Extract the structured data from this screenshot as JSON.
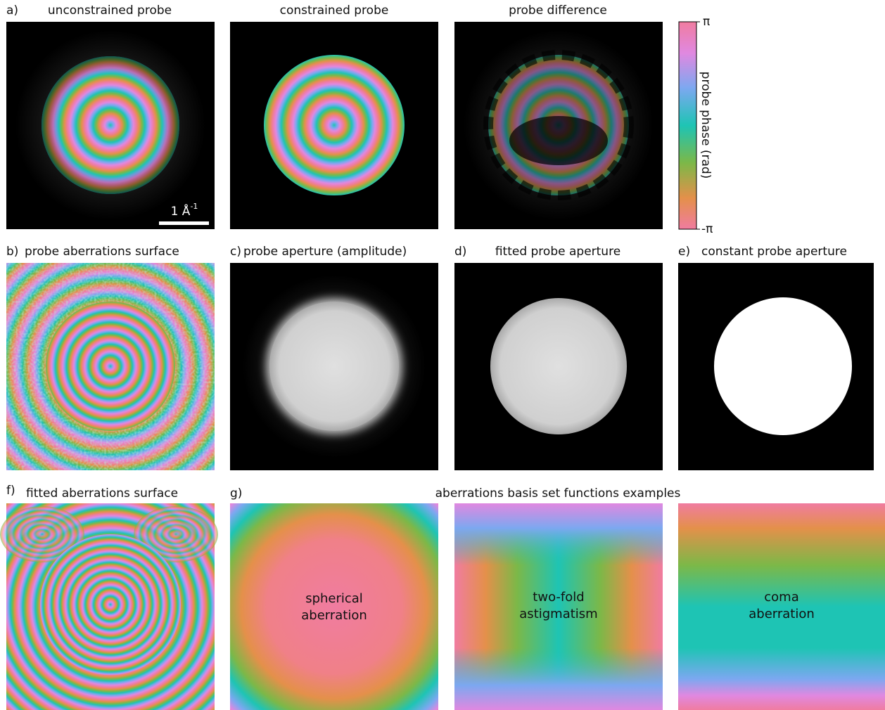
{
  "panels": [
    {
      "letter": "a)",
      "title": "unconstrained probe"
    },
    {
      "title": "constrained probe"
    },
    {
      "title": "probe difference"
    },
    {
      "letter": "b)",
      "title": "probe aberrations surface"
    },
    {
      "letter": "c)",
      "title": "probe aperture (amplitude)"
    },
    {
      "letter": "d)",
      "title": "fitted probe aperture"
    },
    {
      "letter": "e)",
      "title": "constant probe aperture"
    },
    {
      "letter": "f)",
      "title": "fitted aberrations surface"
    }
  ],
  "scale_bar": {
    "text": "1 Å",
    "superscript": "-1"
  },
  "colorbar": {
    "label": "probe phase (rad)",
    "ticks": [
      "π",
      "-π"
    ]
  },
  "basis_examples": {
    "letter": "g)",
    "title": "aberrations basis set functions examples",
    "examples": [
      {
        "lines": [
          "spherical",
          "aberration"
        ]
      },
      {
        "lines": [
          "two-fold",
          "astigmatism"
        ]
      },
      {
        "lines": [
          "coma",
          "aberration"
        ]
      }
    ]
  }
}
